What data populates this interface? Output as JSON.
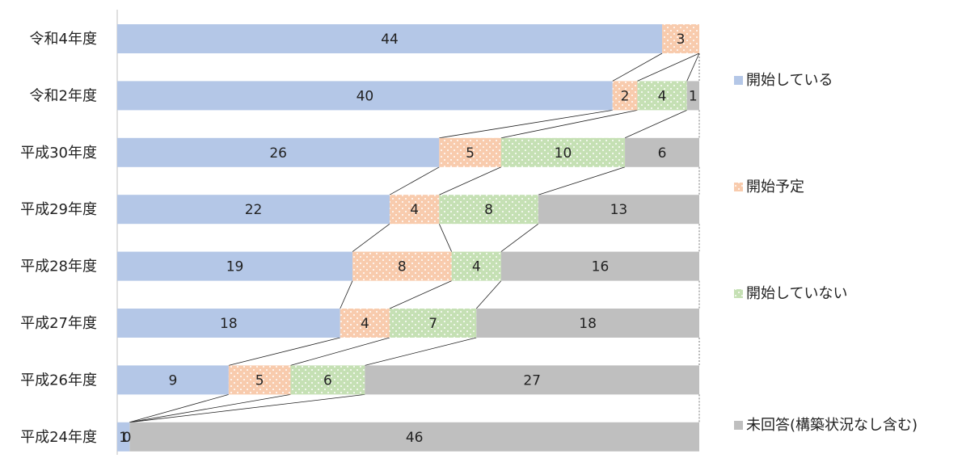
{
  "chart_data": {
    "type": "bar",
    "orientation": "horizontal",
    "stacked": "percent",
    "categories": [
      "令和4年度",
      "令和2年度",
      "平成30年度",
      "平成29年度",
      "平成28年度",
      "平成27年度",
      "平成26年度",
      "平成24年度"
    ],
    "series": [
      {
        "name": "開始している",
        "values": [
          44,
          40,
          26,
          22,
          19,
          18,
          9,
          1
        ],
        "color": "#b4c7e7",
        "pattern": "none"
      },
      {
        "name": "開始予定",
        "values": [
          3,
          2,
          5,
          4,
          8,
          4,
          5,
          0
        ],
        "color": "#f8cbad",
        "pattern": "dots"
      },
      {
        "name": "開始していない",
        "values": [
          0,
          4,
          10,
          8,
          4,
          7,
          6,
          0
        ],
        "color": "#c5e0b4",
        "pattern": "dots"
      },
      {
        "name": "未回答(構築状況なし含む)",
        "values": [
          0,
          1,
          6,
          13,
          16,
          18,
          27,
          46
        ],
        "color": "#bfbfbf",
        "pattern": "none"
      }
    ],
    "series_lines": true,
    "legend_position": "right",
    "grid": false,
    "title": "",
    "xlabel": "",
    "ylabel": ""
  }
}
